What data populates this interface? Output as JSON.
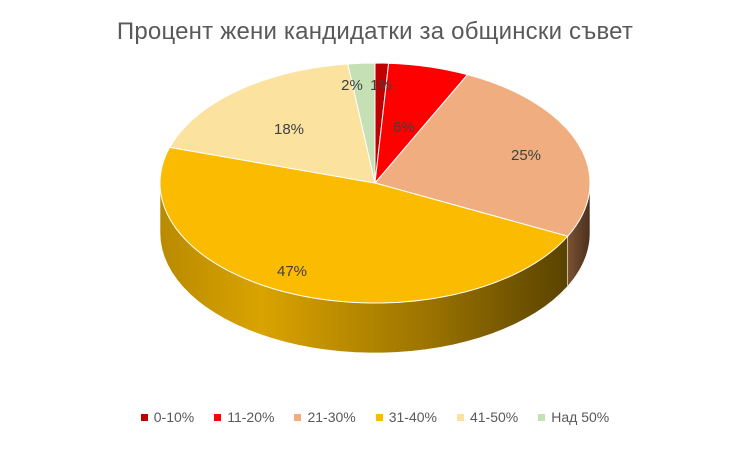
{
  "chart_data": {
    "type": "pie",
    "title": "Процент жени кандидатки за общински съвет",
    "categories": [
      "0-10%",
      "11-20%",
      "21-30%",
      "31-40%",
      "41-50%",
      "Над 50%"
    ],
    "values": [
      1,
      6,
      25,
      47,
      18,
      2
    ],
    "labels": [
      "1%",
      "6%",
      "25%",
      "47%",
      "18%",
      "2%"
    ],
    "colors": [
      "#c00000",
      "#ff0000",
      "#f0ae80",
      "#fbbb00",
      "#fbe29e",
      "#c5e0b4"
    ],
    "legend": "bottom",
    "style": "3d"
  }
}
